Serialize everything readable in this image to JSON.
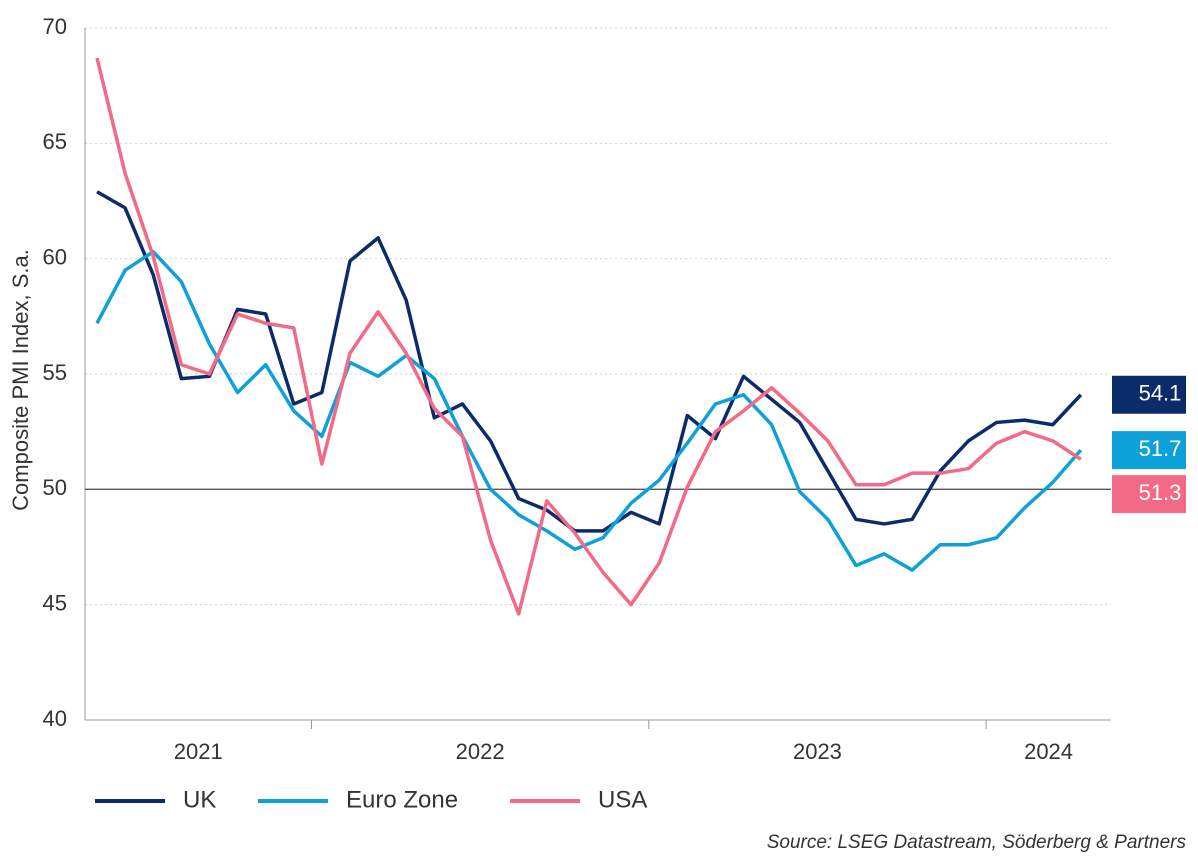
{
  "chart_data": {
    "type": "line",
    "y_label": "Composite PMI Index, S.a.",
    "source": "Source: LSEG Datastream, Söderberg & Partners",
    "categories": [
      "2021",
      null,
      null,
      null,
      null,
      null,
      null,
      null,
      "2022",
      null,
      null,
      null,
      null,
      null,
      null,
      null,
      null,
      null,
      null,
      null,
      "2023",
      null,
      null,
      null,
      null,
      null,
      null,
      null,
      null,
      null,
      null,
      null,
      "2024",
      null,
      null,
      null
    ],
    "ylim": [
      40,
      70
    ],
    "yticks": [
      40,
      45,
      50,
      55,
      60,
      65,
      70
    ],
    "grid": true,
    "hline": 50,
    "series": [
      {
        "name": "UK",
        "color": "#0b2c6b",
        "values": [
          62.9,
          62.2,
          59.3,
          54.8,
          54.9,
          57.8,
          57.6,
          53.7,
          54.2,
          59.9,
          60.9,
          58.2,
          53.1,
          53.7,
          52.1,
          49.6,
          49.1,
          48.2,
          48.2,
          49.0,
          48.5,
          53.2,
          52.2,
          54.9,
          53.9,
          52.9,
          50.8,
          48.7,
          48.5,
          48.7,
          50.8,
          52.1,
          52.9,
          53.0,
          52.8,
          54.1
        ]
      },
      {
        "name": "Euro Zone",
        "color": "#0ea0d8",
        "values": [
          57.2,
          59.5,
          60.3,
          59.0,
          56.3,
          54.2,
          55.4,
          53.4,
          52.3,
          55.5,
          54.9,
          55.8,
          54.8,
          52.3,
          50.0,
          48.9,
          48.2,
          47.4,
          47.9,
          49.4,
          50.4,
          52.0,
          53.7,
          54.1,
          52.8,
          49.9,
          48.7,
          46.7,
          47.2,
          46.5,
          47.6,
          47.6,
          47.9,
          49.2,
          50.3,
          51.7
        ]
      },
      {
        "name": "USA",
        "color": "#f26a86",
        "values": [
          68.7,
          63.7,
          60.1,
          55.4,
          55.0,
          57.6,
          57.2,
          57.0,
          51.1,
          55.9,
          57.7,
          55.9,
          53.5,
          52.3,
          47.8,
          44.6,
          49.5,
          48.1,
          46.4,
          45.0,
          46.8,
          50.1,
          52.5,
          53.4,
          54.4,
          53.3,
          52.1,
          50.2,
          50.2,
          50.7,
          50.7,
          50.9,
          52.0,
          52.5,
          52.1,
          51.3
        ]
      }
    ]
  }
}
